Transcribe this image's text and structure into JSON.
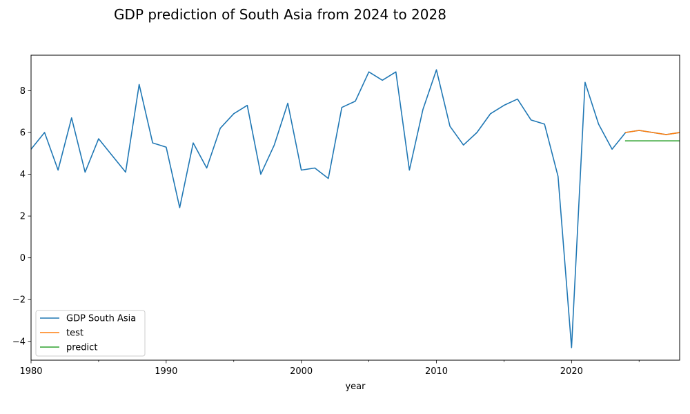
{
  "chart_data": {
    "type": "line",
    "title": "GDP prediction of South Asia from 2024 to 2028",
    "xlabel": "year",
    "ylabel": "",
    "xlim": [
      1980,
      2028
    ],
    "ylim": [
      -4.9,
      9.7
    ],
    "xticks": [
      1980,
      1990,
      2000,
      2010,
      2020
    ],
    "yticks": [
      -4,
      -2,
      0,
      2,
      4,
      6,
      8
    ],
    "ytick_labels": [
      "−4",
      "−2",
      "0",
      "2",
      "4",
      "6",
      "8"
    ],
    "grid": false,
    "legend_position": "lower-left",
    "series": [
      {
        "name": "GDP South Asia",
        "color": "#1f77b4",
        "x": [
          1980,
          1981,
          1982,
          1983,
          1984,
          1985,
          1986,
          1987,
          1988,
          1989,
          1990,
          1991,
          1992,
          1993,
          1994,
          1995,
          1996,
          1997,
          1998,
          1999,
          2000,
          2001,
          2002,
          2003,
          2004,
          2005,
          2006,
          2007,
          2008,
          2009,
          2010,
          2011,
          2012,
          2013,
          2014,
          2015,
          2016,
          2017,
          2018,
          2019,
          2020,
          2021,
          2022,
          2023,
          2024,
          2025,
          2026,
          2027,
          2028
        ],
        "values": [
          5.2,
          6.0,
          4.2,
          6.7,
          4.1,
          5.7,
          4.9,
          4.1,
          8.3,
          5.5,
          5.3,
          2.4,
          5.5,
          4.3,
          6.2,
          6.9,
          7.3,
          4.0,
          5.4,
          7.4,
          4.2,
          4.3,
          3.8,
          7.2,
          7.5,
          8.9,
          8.5,
          8.9,
          4.2,
          7.1,
          9.0,
          6.3,
          5.4,
          6.0,
          6.9,
          7.3,
          7.6,
          6.6,
          6.4,
          3.9,
          -4.3,
          8.4,
          6.4,
          5.2,
          6.0,
          6.1,
          6.0,
          5.9,
          6.0
        ]
      },
      {
        "name": "test",
        "color": "#ff7f0e",
        "x": [
          2024,
          2025,
          2026,
          2027,
          2028
        ],
        "values": [
          6.0,
          6.1,
          6.0,
          5.9,
          6.0
        ]
      },
      {
        "name": "predict",
        "color": "#2ca02c",
        "x": [
          2024,
          2025,
          2026,
          2027,
          2028
        ],
        "values": [
          5.6,
          5.6,
          5.6,
          5.6,
          5.6
        ]
      }
    ]
  }
}
